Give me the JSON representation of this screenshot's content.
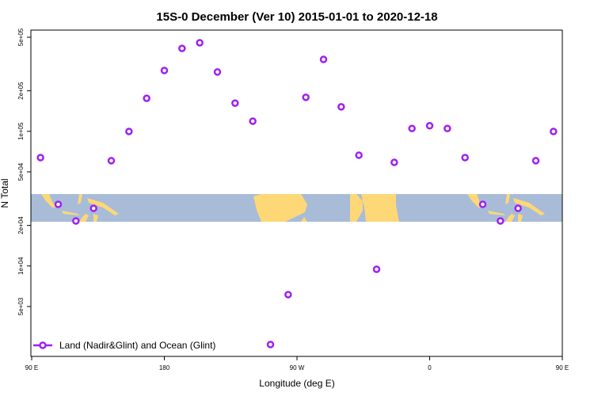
{
  "chart_data": {
    "type": "scatter",
    "title": "15S-0 December (Ver 10)   2015-01-01 to 2020-12-18",
    "xlabel": "Longitude (deg E)",
    "ylabel": "N Total",
    "yscale": "log",
    "ylim": [
      2100,
      560000
    ],
    "xlim": [
      90,
      450
    ],
    "x_ticks": [
      {
        "value": 90,
        "label": "90 E"
      },
      {
        "value": 180,
        "label": "180"
      },
      {
        "value": 270,
        "label": "90 W"
      },
      {
        "value": 360,
        "label": "0"
      },
      {
        "value": 450,
        "label": "90 E"
      },
      {
        "value": 540,
        "label": "180"
      }
    ],
    "y_ticks": [
      {
        "value": 500000,
        "label": "5e+05"
      },
      {
        "value": 200000,
        "label": "2e+05"
      },
      {
        "value": 100000,
        "label": "1e+05"
      },
      {
        "value": 50000,
        "label": "5e+04"
      },
      {
        "value": 20000,
        "label": "2e+04"
      },
      {
        "value": 10000,
        "label": "1e+04"
      },
      {
        "value": 5000,
        "label": "5e+03"
      }
    ],
    "legend": {
      "position": "bottom-left",
      "entries": [
        "Land (Nadir&Glint) and Ocean (Glint)"
      ]
    },
    "series": [
      {
        "name": "Land (Nadir&Glint) and Ocean (Glint)",
        "color": "#a020f0",
        "x": [
          96,
          108,
          120,
          132,
          144,
          156,
          168,
          180,
          192,
          204,
          216,
          228,
          240,
          252,
          264,
          276,
          288,
          300,
          312,
          324,
          336,
          348,
          360,
          372,
          384,
          396,
          408,
          420,
          432,
          444
        ],
        "y": [
          63800,
          28700,
          21600,
          26800,
          60500,
          99800,
          176000,
          283000,
          413000,
          455000,
          276000,
          162000,
          119000,
          2610,
          6130,
          179000,
          342000,
          152000,
          66500,
          9450,
          58800,
          105000,
          110000,
          105000,
          63800,
          28700,
          21600,
          26800,
          60500,
          99800
        ]
      }
    ],
    "colors": {
      "ocean": "#a8bcd8",
      "land": "#fed876"
    }
  }
}
